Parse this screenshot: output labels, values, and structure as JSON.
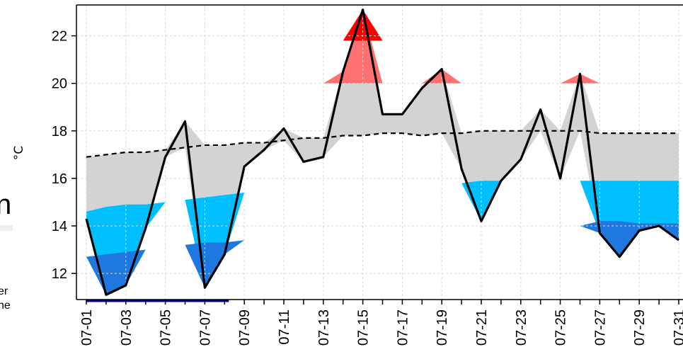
{
  "chart_data": {
    "type": "area",
    "ylabel": "°C",
    "ylim": [
      10.9,
      23.3
    ],
    "y_ticks": [
      12,
      14,
      16,
      18,
      20,
      22
    ],
    "grid": true,
    "x": [
      "07-01",
      "07-02",
      "07-03",
      "07-04",
      "07-05",
      "07-06",
      "07-07",
      "07-08",
      "07-09",
      "07-10",
      "07-11",
      "07-12",
      "07-13",
      "07-14",
      "07-15",
      "07-16",
      "07-17",
      "07-18",
      "07-19",
      "07-20",
      "07-21",
      "07-22",
      "07-23",
      "07-24",
      "07-25",
      "07-26",
      "07-27",
      "07-28",
      "07-29",
      "07-30",
      "07-31"
    ],
    "x_tick_labels": [
      "07-01",
      "07-03",
      "07-05",
      "07-07",
      "07-09",
      "07-11",
      "07-13",
      "07-15",
      "07-17",
      "07-19",
      "07-21",
      "07-23",
      "07-25",
      "07-27",
      "07-29",
      "07-31"
    ],
    "series": [
      {
        "role": "observed",
        "values": [
          14.3,
          11.1,
          11.5,
          13.9,
          16.9,
          18.4,
          11.4,
          12.8,
          16.5,
          17.2,
          18.1,
          16.7,
          16.9,
          20.5,
          23.1,
          18.7,
          18.7,
          19.8,
          20.6,
          16.4,
          14.2,
          15.9,
          16.8,
          18.9,
          16.0,
          20.4,
          13.7,
          12.7,
          13.8,
          14.0,
          13.4
        ]
      },
      {
        "role": "normal",
        "values": [
          16.9,
          17.0,
          17.1,
          17.1,
          17.2,
          17.3,
          17.4,
          17.4,
          17.5,
          17.5,
          17.6,
          17.7,
          17.7,
          17.8,
          17.8,
          17.9,
          17.9,
          17.8,
          17.9,
          17.9,
          18.0,
          18.0,
          18.0,
          18.0,
          18.0,
          18.0,
          17.9,
          17.9,
          17.9,
          17.9,
          17.9
        ]
      },
      {
        "role": "band",
        "values": [
          19.9,
          19.9,
          20.0,
          20.0,
          20.0,
          20.0,
          20.0,
          20.0,
          20.0,
          20.0,
          20.0,
          20.0,
          20.0,
          20.0,
          20.0,
          20.0,
          20.0,
          20.0,
          20.0,
          20.0,
          20.0,
          20.0,
          20.0,
          20.0,
          20.0,
          20.0,
          20.0,
          20.0,
          20.0,
          20.0,
          20.0
        ]
      },
      {
        "role": "band",
        "values": [
          21.7,
          21.7,
          21.8,
          21.8,
          21.8,
          21.8,
          21.8,
          21.8,
          21.8,
          21.8,
          21.8,
          21.8,
          21.8,
          21.8,
          21.8,
          21.8,
          21.8,
          21.8,
          21.8,
          21.8,
          21.8,
          21.8,
          21.8,
          21.8,
          21.8,
          21.8,
          21.8,
          21.8,
          21.8,
          21.8,
          21.8
        ]
      },
      {
        "role": "band",
        "values": [
          14.6,
          14.8,
          14.9,
          14.9,
          15.0,
          15.1,
          15.2,
          15.3,
          15.4,
          15.4,
          15.5,
          15.5,
          15.6,
          15.6,
          15.7,
          15.7,
          15.7,
          15.8,
          15.8,
          15.8,
          15.9,
          15.9,
          15.9,
          15.9,
          15.9,
          15.9,
          15.9,
          15.9,
          15.9,
          15.9,
          15.9
        ]
      },
      {
        "role": "band",
        "values": [
          12.7,
          12.8,
          12.9,
          13.0,
          13.1,
          13.2,
          13.3,
          13.3,
          13.4,
          13.5,
          13.5,
          13.6,
          13.6,
          13.7,
          13.7,
          13.8,
          13.8,
          13.9,
          13.9,
          13.9,
          14.0,
          14.0,
          14.0,
          14.0,
          14.0,
          14.0,
          14.2,
          14.2,
          14.1,
          14.1,
          14.1
        ]
      }
    ]
  },
  "colors": {
    "above_normal": "#d3d3d3",
    "warm": "#ff7070",
    "hot": "#ff0000",
    "cool": "#00bfff",
    "cold": "#1e78e0",
    "line": "#000000",
    "grid": "#d8d8d8",
    "rug": "#00008b"
  },
  "fragments": {
    "large_letter": "n",
    "line_a": "er",
    "line_b": "he"
  }
}
